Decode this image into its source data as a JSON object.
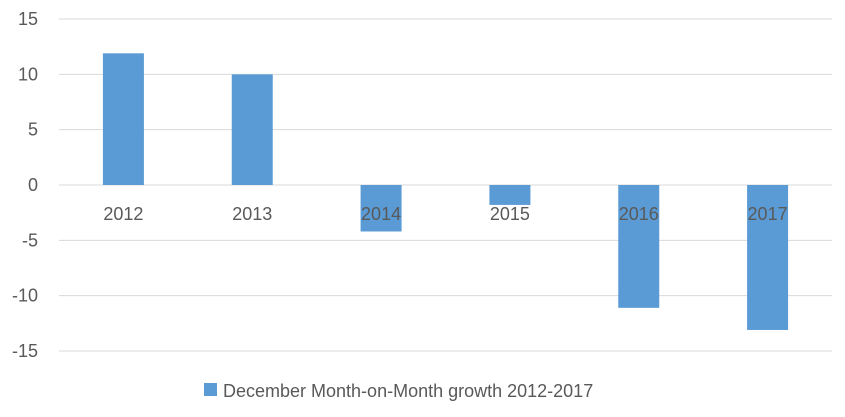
{
  "chart_data": {
    "type": "bar",
    "title": "",
    "xlabel": "",
    "ylabel": "",
    "categories": [
      "2012",
      "2013",
      "2014",
      "2015",
      "2016",
      "2017"
    ],
    "series": [
      {
        "name": "December Month-on-Month growth 2012-2017",
        "values": [
          11.9,
          10.0,
          -4.2,
          -1.8,
          -11.1,
          -13.1
        ],
        "color": "#5B9BD5"
      }
    ],
    "ylim": [
      -15,
      15
    ],
    "yticks": [
      "15",
      "10",
      "5",
      "0",
      "-5",
      "-10",
      "-15"
    ],
    "grid": true,
    "gridColor": "#D9D9D9",
    "legend": "bottom"
  }
}
